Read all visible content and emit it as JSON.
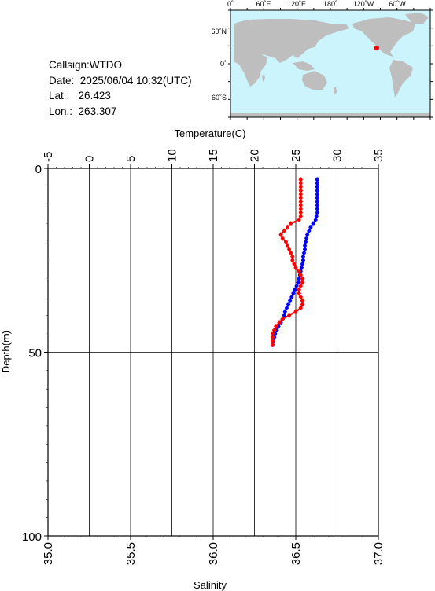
{
  "info": {
    "callsign": "Callsign:WTDO",
    "date_label": "Date:",
    "date_value": "2025/06/04 10:32(UTC)",
    "lat_label": "Lat.:",
    "lat_value": "26.423",
    "lon_label": "Lon.:",
    "lon_value": "263.307"
  },
  "map": {
    "ocean_color": "#ccf4fc",
    "land_color": "#bebebe",
    "marker_color": "#ff0000",
    "marker": {
      "lon": 263.307,
      "lat": 26.423
    },
    "lon_ticks": [
      "0˚",
      "60˚E",
      "120˚E",
      "180˚",
      "120˚W",
      "60˚W"
    ],
    "lat_ticks": [
      "60˚N",
      "0˚",
      "60˚S"
    ]
  },
  "chart_data": {
    "type": "line",
    "top_axis": {
      "label": "Temperature(C)",
      "range": [
        -5,
        35
      ],
      "ticks": [
        "-5",
        "0",
        "5",
        "10",
        "15",
        "20",
        "25",
        "30",
        "35"
      ]
    },
    "bottom_axis": {
      "label": "Salinity",
      "range": [
        35.0,
        37.0
      ],
      "ticks": [
        "35.0",
        "35.5",
        "36.0",
        "36.5",
        "37.0"
      ]
    },
    "y_axis": {
      "label": "Depth(m)",
      "range": [
        0,
        100
      ],
      "ticks": [
        "0",
        "50",
        "100"
      ],
      "inverted": true
    },
    "grid_lines_x": true,
    "series": [
      {
        "axis": "temperature",
        "color": "#0000ff",
        "points": [
          [
            27.6,
            3.0
          ],
          [
            27.6,
            4.0
          ],
          [
            27.6,
            5.0
          ],
          [
            27.6,
            6.0
          ],
          [
            27.6,
            7.0
          ],
          [
            27.6,
            8.0
          ],
          [
            27.6,
            9.0
          ],
          [
            27.6,
            10.0
          ],
          [
            27.6,
            11.0
          ],
          [
            27.6,
            12.0
          ],
          [
            27.5,
            13.0
          ],
          [
            27.4,
            14.0
          ],
          [
            27.1,
            15.0
          ],
          [
            26.8,
            16.0
          ],
          [
            26.6,
            17.0
          ],
          [
            26.4,
            18.0
          ],
          [
            26.3,
            19.0
          ],
          [
            26.2,
            20.0
          ],
          [
            26.1,
            21.0
          ],
          [
            26.1,
            22.0
          ],
          [
            26.0,
            23.0
          ],
          [
            25.9,
            24.0
          ],
          [
            25.9,
            25.0
          ],
          [
            25.8,
            26.0
          ],
          [
            25.7,
            27.0
          ],
          [
            25.6,
            28.0
          ],
          [
            25.5,
            29.0
          ],
          [
            25.4,
            30.0
          ],
          [
            25.3,
            31.0
          ],
          [
            25.1,
            32.0
          ],
          [
            24.9,
            33.0
          ],
          [
            24.7,
            34.0
          ],
          [
            24.5,
            35.0
          ],
          [
            24.3,
            36.0
          ],
          [
            24.1,
            37.0
          ],
          [
            23.9,
            38.0
          ],
          [
            23.7,
            39.0
          ],
          [
            23.6,
            40.0
          ],
          [
            23.4,
            41.0
          ],
          [
            23.2,
            42.0
          ],
          [
            22.9,
            43.0
          ],
          [
            22.7,
            44.0
          ],
          [
            22.5,
            45.0
          ],
          [
            22.4,
            46.0
          ],
          [
            22.3,
            47.0
          ],
          [
            22.2,
            48.0
          ]
        ]
      },
      {
        "axis": "salinity",
        "color": "#ff0000",
        "points": [
          [
            36.53,
            3.0
          ],
          [
            36.53,
            4.0
          ],
          [
            36.53,
            5.0
          ],
          [
            36.53,
            6.0
          ],
          [
            36.53,
            7.0
          ],
          [
            36.53,
            8.0
          ],
          [
            36.53,
            9.0
          ],
          [
            36.53,
            10.0
          ],
          [
            36.53,
            11.0
          ],
          [
            36.53,
            12.0
          ],
          [
            36.53,
            13.0
          ],
          [
            36.52,
            14.0
          ],
          [
            36.47,
            15.0
          ],
          [
            36.45,
            16.0
          ],
          [
            36.43,
            17.0
          ],
          [
            36.41,
            18.0
          ],
          [
            36.42,
            19.0
          ],
          [
            36.44,
            20.0
          ],
          [
            36.45,
            21.0
          ],
          [
            36.46,
            22.0
          ],
          [
            36.47,
            23.0
          ],
          [
            36.48,
            24.0
          ],
          [
            36.48,
            25.0
          ],
          [
            36.49,
            26.0
          ],
          [
            36.5,
            27.0
          ],
          [
            36.52,
            28.0
          ],
          [
            36.53,
            29.0
          ],
          [
            36.54,
            30.0
          ],
          [
            36.54,
            31.0
          ],
          [
            36.53,
            32.0
          ],
          [
            36.52,
            33.0
          ],
          [
            36.52,
            34.0
          ],
          [
            36.53,
            35.0
          ],
          [
            36.54,
            36.0
          ],
          [
            36.54,
            37.0
          ],
          [
            36.53,
            38.0
          ],
          [
            36.5,
            39.0
          ],
          [
            36.46,
            40.0
          ],
          [
            36.42,
            41.0
          ],
          [
            36.4,
            42.0
          ],
          [
            36.38,
            43.0
          ],
          [
            36.37,
            44.0
          ],
          [
            36.36,
            45.0
          ],
          [
            36.36,
            46.0
          ],
          [
            36.36,
            47.0
          ],
          [
            36.36,
            48.0
          ]
        ]
      }
    ]
  }
}
